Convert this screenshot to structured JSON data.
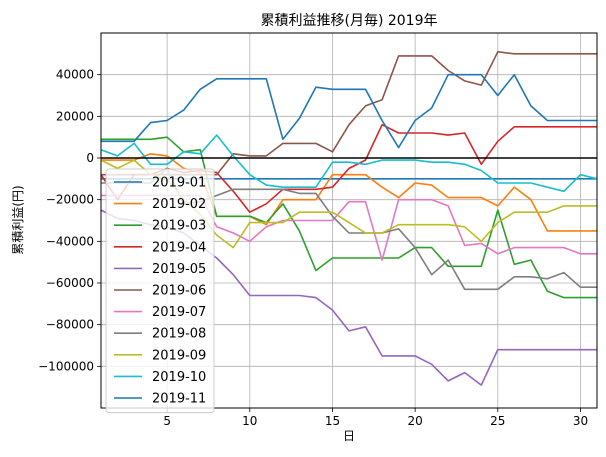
{
  "chart_data": {
    "type": "line",
    "title": "累積利益推移(月毎)  2019年",
    "xlabel": "日",
    "ylabel": "累積利益(円)",
    "xlim": [
      1,
      31
    ],
    "ylim": [
      -120000,
      60000
    ],
    "xticks": [
      5,
      10,
      15,
      20,
      25,
      30
    ],
    "yticks": [
      -100000,
      -80000,
      -60000,
      -40000,
      -20000,
      0,
      20000,
      40000
    ],
    "ytick_labels": [
      "−100000",
      "−80000",
      "−60000",
      "−40000",
      "−20000",
      "0",
      "20000",
      "40000"
    ],
    "grid": true,
    "zero_line": true,
    "legend_position": "lower-left",
    "x": [
      1,
      2,
      3,
      4,
      5,
      6,
      7,
      8,
      9,
      10,
      11,
      12,
      13,
      14,
      15,
      16,
      17,
      18,
      19,
      20,
      21,
      22,
      23,
      24,
      25,
      26,
      27,
      28,
      29,
      30,
      31
    ],
    "series": [
      {
        "name": "2019-01",
        "color": "#1f77b4",
        "values": [
          -10000,
          -10000,
          -10000,
          -10000,
          -10000,
          -10000,
          -10000,
          -10000,
          -10000,
          -10000,
          -10000,
          -10000,
          -10000,
          -10000,
          -10000,
          -10000,
          -10000,
          -10000,
          -10000,
          -10000,
          -10000,
          -10000,
          -10000,
          -10000,
          -10000,
          -10000,
          -10000,
          -10000,
          -10000,
          -10000,
          -10000
        ]
      },
      {
        "name": "2019-02",
        "color": "#ff7f0e",
        "values": [
          -1000,
          -1000,
          -1000,
          2000,
          1000,
          -5000,
          -7000,
          -28000,
          -28000,
          -28000,
          -32000,
          -20000,
          -20000,
          -20000,
          -8000,
          -8000,
          -8000,
          -14000,
          -19000,
          -12000,
          -13000,
          -19000,
          -19000,
          -19000,
          -23000,
          -14000,
          -20000,
          -35000,
          -35000,
          -35000,
          -35000
        ]
      },
      {
        "name": "2019-03",
        "color": "#2ca02c",
        "values": [
          9000,
          9000,
          9000,
          9000,
          10000,
          3000,
          4000,
          -28000,
          -28000,
          -28000,
          -31000,
          -22000,
          -35000,
          -54000,
          -48000,
          -48000,
          -48000,
          -48000,
          -48000,
          -43000,
          -43000,
          -52000,
          -52000,
          -52000,
          -25000,
          -51000,
          -49000,
          -64000,
          -67000,
          -67000,
          -67000
        ]
      },
      {
        "name": "2019-04",
        "color": "#d62728",
        "values": [
          -8000,
          -20000,
          -8000,
          -8000,
          -5000,
          -7000,
          -6000,
          -7000,
          -16000,
          -26000,
          -22000,
          -15000,
          -15000,
          -15000,
          -14000,
          -5000,
          -1000,
          16000,
          12000,
          12000,
          12000,
          11000,
          12000,
          -3000,
          8000,
          15000,
          15000,
          15000,
          15000,
          15000,
          15000
        ]
      },
      {
        "name": "2019-05",
        "color": "#9467bd",
        "values": [
          -25000,
          -29000,
          -30000,
          -32000,
          -33000,
          -36000,
          -42000,
          -48000,
          -56000,
          -66000,
          -66000,
          -66000,
          -66000,
          -67000,
          -73000,
          -83000,
          -81000,
          -95000,
          -95000,
          -95000,
          -99000,
          -107000,
          -103000,
          -109000,
          -92000,
          -92000,
          -92000,
          -92000,
          -92000,
          -92000,
          -92000
        ]
      },
      {
        "name": "2019-06",
        "color": "#8c564b",
        "values": [
          -8000,
          -8000,
          -8000,
          -8000,
          -8000,
          -8000,
          -8000,
          -8000,
          2000,
          1000,
          1000,
          7000,
          7000,
          7000,
          3000,
          16000,
          25000,
          28000,
          49000,
          49000,
          49000,
          42000,
          37000,
          35000,
          51000,
          50000,
          50000,
          50000,
          50000,
          50000,
          50000
        ]
      },
      {
        "name": "2019-07",
        "color": "#e377c2",
        "values": [
          -18000,
          -18000,
          -18000,
          -18000,
          -18000,
          -18000,
          -18000,
          -33000,
          -36000,
          -40000,
          -33000,
          -30000,
          -30000,
          -30000,
          -30000,
          -21000,
          -21000,
          -49000,
          -20000,
          -20000,
          -20000,
          -23000,
          -42000,
          -41000,
          -46000,
          -43000,
          -43000,
          -43000,
          -43000,
          -46000,
          -46000
        ]
      },
      {
        "name": "2019-08",
        "color": "#7f7f7f",
        "values": [
          -12000,
          -12000,
          -12000,
          -12000,
          -5000,
          -22000,
          -21000,
          -18000,
          -15000,
          -15000,
          -15000,
          -15000,
          -17000,
          -17000,
          -28000,
          -36000,
          -36000,
          -36000,
          -34000,
          -43000,
          -56000,
          -49000,
          -63000,
          -63000,
          -63000,
          -57000,
          -57000,
          -58000,
          -55000,
          -62000,
          -62000
        ]
      },
      {
        "name": "2019-09",
        "color": "#bcbd22",
        "values": [
          -1000,
          -5000,
          -1000,
          -8000,
          -10000,
          -20000,
          -27000,
          -37000,
          -43000,
          -31000,
          -31000,
          -31000,
          -26000,
          -26000,
          -26000,
          -31000,
          -36000,
          -36000,
          -32000,
          -32000,
          -32000,
          -32000,
          -33000,
          -40000,
          -31000,
          -26000,
          -26000,
          -26000,
          -23000,
          -23000,
          -23000
        ]
      },
      {
        "name": "2019-10",
        "color": "#17becf",
        "values": [
          4000,
          1000,
          7000,
          -3000,
          -3000,
          3000,
          2000,
          11000,
          1000,
          -8000,
          -13000,
          -14000,
          -14000,
          -14000,
          -2000,
          -2000,
          -3000,
          -1000,
          -1000,
          -1000,
          -2000,
          -2000,
          -3000,
          -6000,
          -12000,
          -12000,
          -12000,
          -14000,
          -16000,
          -8000,
          -10000
        ]
      },
      {
        "name": "2019-11",
        "color": "#1f77b4",
        "values": [
          8000,
          8000,
          8000,
          17000,
          18000,
          23000,
          33000,
          38000,
          38000,
          38000,
          38000,
          9000,
          19000,
          34000,
          33000,
          33000,
          33000,
          18000,
          5000,
          18000,
          24000,
          40000,
          40000,
          40000,
          30000,
          40000,
          25000,
          18000,
          18000,
          18000,
          18000
        ]
      }
    ]
  }
}
